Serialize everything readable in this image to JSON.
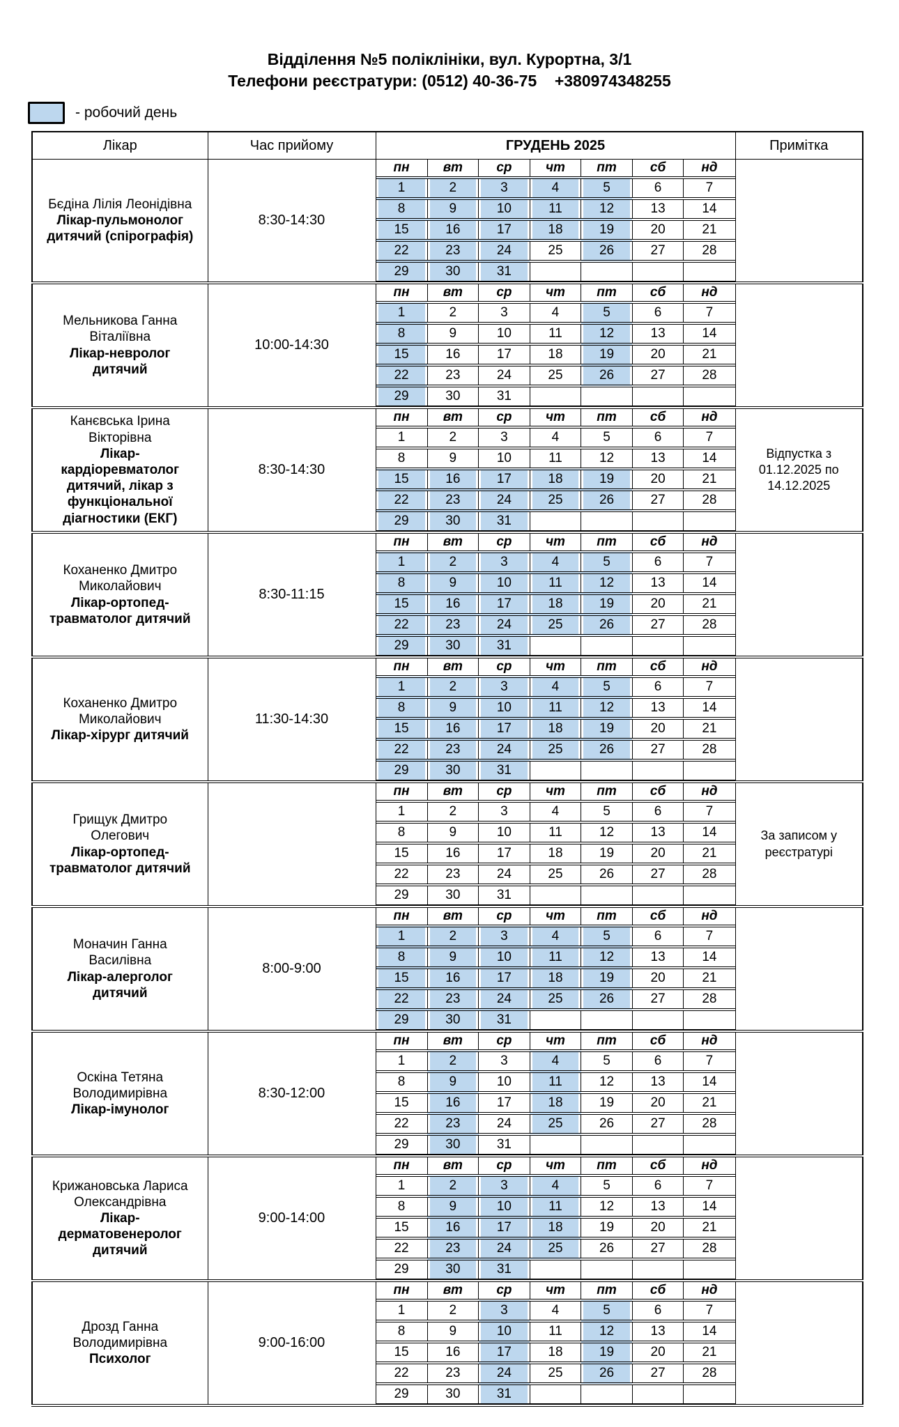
{
  "header": {
    "title_line1": "Відділення №5 поліклініки, вул. Курортна, 3/1",
    "title_line2": "Телефони реєстратури: (0512) 40-36-75    +380974348255",
    "legend_label": "- робочий день"
  },
  "colors": {
    "working_day_fill": "#BDD7EE",
    "border": "#000000"
  },
  "table": {
    "columns": {
      "doctor": "Лікар",
      "hours": "Час прийому",
      "month": "ГРУДЕНЬ 2025",
      "note": "Примітка"
    },
    "weekdays": [
      "пн",
      "вт",
      "ср",
      "чт",
      "пт",
      "сб",
      "нд"
    ],
    "weeks": [
      [
        1,
        2,
        3,
        4,
        5,
        6,
        7
      ],
      [
        8,
        9,
        10,
        11,
        12,
        13,
        14
      ],
      [
        15,
        16,
        17,
        18,
        19,
        20,
        21
      ],
      [
        22,
        23,
        24,
        25,
        26,
        27,
        28
      ],
      [
        29,
        30,
        31,
        null,
        null,
        null,
        null
      ]
    ],
    "doctors": [
      {
        "name": "Бєдіна Лілія Леонідівна",
        "specialty": "Лікар-пульмонолог дитячий (спірографія)",
        "hours": "8:30-14:30",
        "working_days": [
          1,
          2,
          3,
          4,
          5,
          8,
          9,
          10,
          11,
          12,
          15,
          16,
          17,
          18,
          19,
          22,
          23,
          24,
          26,
          29,
          30,
          31
        ],
        "note": ""
      },
      {
        "name": "Мельникова Ганна Віталіївна",
        "specialty": "Лікар-невролог дитячий",
        "hours": "10:00-14:30",
        "working_days": [
          1,
          5,
          8,
          12,
          15,
          19,
          22,
          26,
          29
        ],
        "note": ""
      },
      {
        "name": "Канєвська Ірина Вікторівна",
        "specialty": "Лікар-кардіоревматолог дитячий, лікар з функціональної діагностики (ЕКГ)",
        "hours": "8:30-14:30",
        "working_days": [
          15,
          16,
          17,
          18,
          19,
          22,
          23,
          24,
          25,
          26,
          29,
          30,
          31
        ],
        "note": "Відпустка з 01.12.2025 по 14.12.2025"
      },
      {
        "name": "Коханенко Дмитро Миколайович",
        "specialty": "Лікар-ортопед-травматолог дитячий",
        "hours": "8:30-11:15",
        "working_days": [
          1,
          2,
          3,
          4,
          5,
          8,
          9,
          10,
          11,
          12,
          15,
          16,
          17,
          18,
          19,
          22,
          23,
          24,
          25,
          26,
          29,
          30,
          31
        ],
        "note": ""
      },
      {
        "name": "Коханенко Дмитро Миколайович",
        "specialty": "Лікар-хірург дитячий",
        "hours": "11:30-14:30",
        "working_days": [
          1,
          2,
          3,
          4,
          5,
          8,
          9,
          10,
          11,
          12,
          15,
          16,
          17,
          18,
          19,
          22,
          23,
          24,
          25,
          26,
          29,
          30,
          31
        ],
        "note": ""
      },
      {
        "name": "Грищук Дмитро Олегович",
        "specialty": "Лікар-ортопед-травматолог дитячий",
        "hours": "",
        "working_days": [],
        "note": "За записом у реєстратурі"
      },
      {
        "name": "Моначин Ганна Василівна",
        "specialty": "Лікар-алерголог дитячий",
        "hours": "8:00-9:00",
        "working_days": [
          1,
          2,
          3,
          4,
          5,
          8,
          9,
          10,
          11,
          12,
          15,
          16,
          17,
          18,
          19,
          22,
          23,
          24,
          25,
          26,
          29,
          30,
          31
        ],
        "note": ""
      },
      {
        "name": "Оскіна Тетяна Володимирівна",
        "specialty": "Лікар-імунолог",
        "hours": "8:30-12:00",
        "working_days": [
          2,
          4,
          9,
          11,
          16,
          18,
          23,
          25,
          30
        ],
        "note": ""
      },
      {
        "name": "Крижановська Лариса Олександрівна",
        "specialty": "Лікар-дерматовенеролог дитячий",
        "hours": "9:00-14:00",
        "working_days": [
          2,
          3,
          4,
          9,
          10,
          11,
          16,
          17,
          18,
          23,
          24,
          25,
          30,
          31
        ],
        "note": ""
      },
      {
        "name": "Дрозд Ганна Володимирівна",
        "specialty": "Психолог",
        "hours": "9:00-16:00",
        "working_days": [
          3,
          5,
          10,
          12,
          17,
          19,
          24,
          26,
          31
        ],
        "note": ""
      }
    ]
  }
}
